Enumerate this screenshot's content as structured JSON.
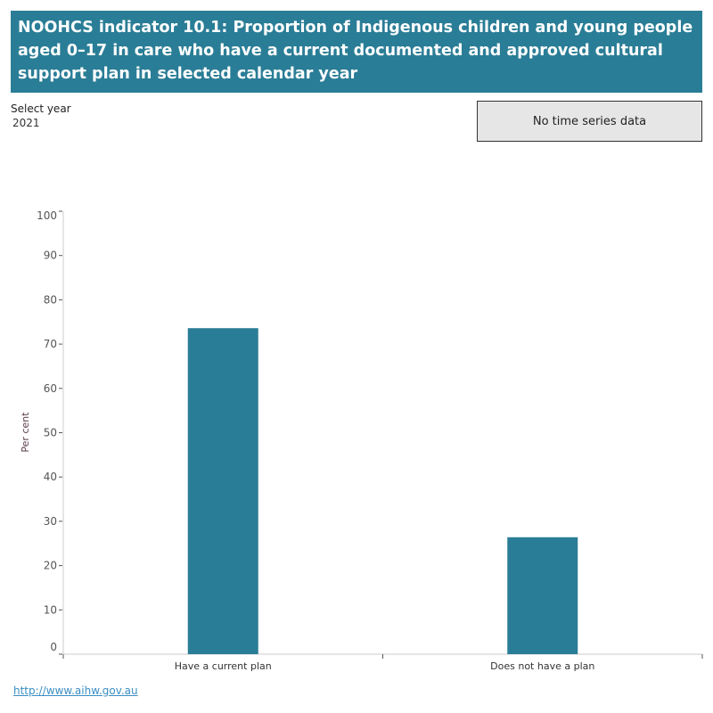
{
  "header": {
    "title": "NOOHCS indicator 10.1: Proportion of Indigenous children and young people aged 0–17 in care who have a current documented and approved cultural support plan in selected calendar year"
  },
  "filter": {
    "label": "Select year",
    "value": "2021"
  },
  "time_series_button": "No time series data",
  "footer": {
    "link": "http://www.aihw.gov.au"
  },
  "colors": {
    "bar": "#2a7d96",
    "header": "#2a7d96"
  },
  "chart_data": {
    "type": "bar",
    "categories": [
      "Have a current plan",
      "Does not have a plan"
    ],
    "values": [
      73.6,
      26.4
    ],
    "ylabel": "Per cent",
    "ylim": [
      0,
      100
    ],
    "yticks": [
      0,
      10,
      20,
      30,
      40,
      50,
      60,
      70,
      80,
      90,
      100
    ],
    "grid": false
  }
}
